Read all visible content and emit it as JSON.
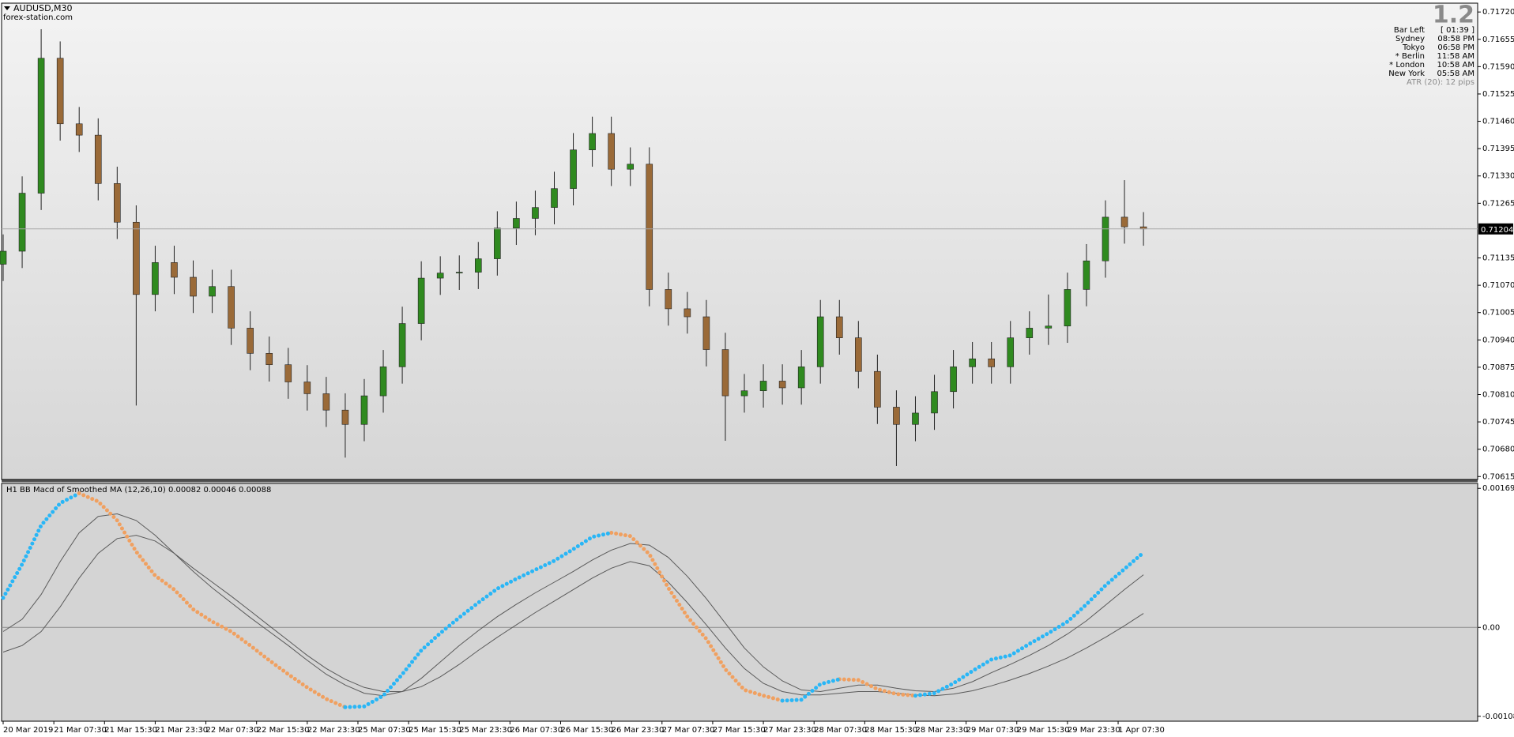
{
  "chart_data": [
    {
      "type": "candlestick",
      "title": "AUDUSD,M30",
      "subtitle": "forex-station.com",
      "x": [
        0,
        6,
        12,
        18,
        24,
        30,
        36,
        42,
        48,
        54,
        60,
        66,
        72,
        78,
        84,
        90,
        96,
        102,
        108,
        114,
        120,
        126,
        132,
        138,
        144,
        150,
        156,
        162,
        168,
        174,
        180,
        186,
        192,
        198,
        204,
        210,
        216,
        222,
        228,
        234,
        240,
        246,
        252,
        258,
        264,
        270,
        276,
        282,
        288,
        294,
        300,
        306,
        312,
        318,
        324,
        330,
        336,
        342,
        348,
        354,
        360
      ],
      "open": [
        0.7112,
        0.71151,
        0.71289,
        0.7161,
        0.71454,
        0.71427,
        0.71312,
        0.7122,
        0.71048,
        0.71124,
        0.71089,
        0.71044,
        0.71067,
        0.70968,
        0.70908,
        0.70881,
        0.7084,
        0.70812,
        0.70773,
        0.70739,
        0.70807,
        0.70876,
        0.70979,
        0.71087,
        0.71099,
        0.71101,
        0.71133,
        0.71206,
        0.71229,
        0.71255,
        0.713,
        0.71392,
        0.71431,
        0.71346,
        0.71358,
        0.7106,
        0.71014,
        0.70995,
        0.70917,
        0.70807,
        0.70819,
        0.70842,
        0.70826,
        0.70876,
        0.70995,
        0.70945,
        0.70865,
        0.7078,
        0.70739,
        0.70766,
        0.70817,
        0.70876,
        0.70895,
        0.70876,
        0.70945,
        0.70968,
        0.70973,
        0.7106,
        0.71128,
        0.71232,
        0.71209
      ],
      "high": [
        0.71191,
        0.71329,
        0.71679,
        0.7165,
        0.71494,
        0.71467,
        0.71352,
        0.7126,
        0.71164,
        0.71164,
        0.71129,
        0.71107,
        0.71107,
        0.71008,
        0.70948,
        0.70921,
        0.7088,
        0.70852,
        0.70813,
        0.70847,
        0.70916,
        0.71019,
        0.71127,
        0.71139,
        0.71141,
        0.71173,
        0.71246,
        0.71269,
        0.71295,
        0.7134,
        0.71432,
        0.71471,
        0.71471,
        0.71398,
        0.71398,
        0.711,
        0.71054,
        0.71035,
        0.70957,
        0.70859,
        0.70882,
        0.70882,
        0.70916,
        0.71035,
        0.71035,
        0.70985,
        0.70905,
        0.7082,
        0.70806,
        0.70857,
        0.70916,
        0.70935,
        0.70935,
        0.70985,
        0.71008,
        0.71048,
        0.711,
        0.71168,
        0.71272,
        0.7132,
        0.71244
      ],
      "low": [
        0.7108,
        0.71111,
        0.71249,
        0.71414,
        0.71387,
        0.71272,
        0.7118,
        0.70784,
        0.71008,
        0.71049,
        0.71004,
        0.71004,
        0.70928,
        0.70868,
        0.70841,
        0.708,
        0.70772,
        0.70733,
        0.7066,
        0.70699,
        0.70767,
        0.70836,
        0.70939,
        0.71047,
        0.71059,
        0.71061,
        0.71093,
        0.71166,
        0.71189,
        0.71215,
        0.7126,
        0.71352,
        0.71306,
        0.71306,
        0.7102,
        0.70974,
        0.70955,
        0.70877,
        0.707,
        0.70767,
        0.70779,
        0.70786,
        0.70786,
        0.70836,
        0.70905,
        0.70825,
        0.7074,
        0.7064,
        0.70699,
        0.70726,
        0.70777,
        0.70836,
        0.70836,
        0.70836,
        0.70905,
        0.70928,
        0.70933,
        0.7102,
        0.71088,
        0.71169,
        0.71164
      ],
      "close": [
        0.71151,
        0.71289,
        0.7161,
        0.71454,
        0.71427,
        0.71312,
        0.7122,
        0.71048,
        0.71124,
        0.71089,
        0.71044,
        0.71067,
        0.70968,
        0.70908,
        0.70881,
        0.7084,
        0.70812,
        0.70773,
        0.70739,
        0.70807,
        0.70876,
        0.70979,
        0.71087,
        0.71099,
        0.71101,
        0.71133,
        0.71206,
        0.71229,
        0.71255,
        0.713,
        0.71392,
        0.71431,
        0.71346,
        0.71358,
        0.7106,
        0.71014,
        0.70995,
        0.70917,
        0.70807,
        0.70819,
        0.70842,
        0.70826,
        0.70876,
        0.70995,
        0.70945,
        0.70865,
        0.7078,
        0.70739,
        0.70766,
        0.70817,
        0.70876,
        0.70895,
        0.70876,
        0.70945,
        0.70968,
        0.70973,
        0.7106,
        0.71128,
        0.71232,
        0.71209,
        0.71204
      ],
      "up_color": "#2f8a1f",
      "down_color": "#9a6a38",
      "xlim": [
        -0.5,
        465.5
      ],
      "ylim": [
        0.70608,
        0.71741
      ],
      "yticks": [
        {
          "value": 0.7172,
          "label": "0.71720"
        },
        0.71655,
        {
          "value": 0.7159,
          "label": "0.71590"
        },
        0.71525,
        {
          "value": 0.7146,
          "label": "0.71460"
        },
        0.71395,
        {
          "value": 0.7133,
          "label": "0.71330"
        },
        0.71265,
        0.71135,
        {
          "value": 0.7107,
          "label": "0.71070"
        },
        0.71005,
        {
          "value": 0.7094,
          "label": "0.70940"
        },
        0.70875,
        {
          "value": 0.7081,
          "label": "0.70810"
        },
        0.70745,
        {
          "value": 0.7068,
          "label": "0.70680"
        },
        0.70615
      ],
      "last_price": {
        "value": 0.71204,
        "label": "0.71204"
      }
    },
    {
      "type": "line",
      "title": "H1  BB Macd of Smoothed MA (12,26,10) 0.00082 0.00046 0.00088",
      "x": [
        0,
        6,
        12,
        18,
        24,
        30,
        36,
        42,
        48,
        54,
        60,
        66,
        72,
        78,
        84,
        90,
        96,
        102,
        108,
        114,
        120,
        126,
        132,
        138,
        144,
        150,
        156,
        162,
        168,
        174,
        180,
        186,
        192,
        198,
        204,
        210,
        216,
        222,
        228,
        234,
        240,
        246,
        252,
        258,
        264,
        270,
        276,
        282,
        288,
        294,
        300,
        306,
        312,
        318,
        324,
        330,
        336,
        342,
        348,
        354,
        360
      ],
      "series": [
        {
          "color": "#5a5a5a",
          "style": "line",
          "values": [
            -0.0003,
            -0.00022,
            -5e-05,
            0.00025,
            0.0006,
            0.0009,
            0.00108,
            0.00112,
            0.00105,
            0.0009,
            0.00072,
            0.00055,
            0.00038,
            0.0002,
            2e-05,
            -0.00016,
            -0.00034,
            -0.0005,
            -0.00063,
            -0.00073,
            -0.00078,
            -0.00078,
            -0.00072,
            -0.0006,
            -0.00045,
            -0.00028,
            -0.00012,
            3e-05,
            0.00018,
            0.00032,
            0.00046,
            0.0006,
            0.00072,
            0.0008,
            0.00075,
            0.00055,
            0.0003,
            3e-05,
            -0.00025,
            -0.0005,
            -0.00068,
            -0.00078,
            -0.00082,
            -0.00082,
            -0.0008,
            -0.00078,
            -0.00078,
            -0.0008,
            -0.00082,
            -0.00083,
            -0.00081,
            -0.00077,
            -0.00071,
            -0.00064,
            -0.00056,
            -0.00047,
            -0.00037,
            -0.00025,
            -0.00012,
            2e-05,
            0.00017
          ]
        },
        {
          "color": "#5a5a5a",
          "style": "line",
          "values": [
            -5e-05,
            0.0001,
            0.0004,
            0.0008,
            0.00115,
            0.00135,
            0.00138,
            0.0013,
            0.00112,
            0.0009,
            0.00068,
            0.00048,
            0.0003,
            0.00012,
            -5e-05,
            -0.00022,
            -0.0004,
            -0.00057,
            -0.0007,
            -0.0008,
            -0.00083,
            -0.00078,
            -0.00062,
            -0.00042,
            -0.00022,
            -4e-05,
            0.00013,
            0.00028,
            0.00042,
            0.00055,
            0.00068,
            0.00082,
            0.00094,
            0.00102,
            0.001,
            0.00085,
            0.00062,
            0.00035,
            5e-05,
            -0.00025,
            -0.00048,
            -0.00065,
            -0.00076,
            -0.00078,
            -0.00074,
            -0.0007,
            -0.0007,
            -0.00074,
            -0.00077,
            -0.00078,
            -0.00074,
            -0.00066,
            -0.00055,
            -0.00045,
            -0.00034,
            -0.00022,
            -8e-05,
            8e-05,
            0.00027,
            0.00046,
            0.00064
          ]
        },
        {
          "color": "#f0a060",
          "style": "dots",
          "values": [
            null,
            null,
            null,
            null,
            0.00163,
            0.00153,
            0.0013,
            0.00092,
            0.00063,
            0.00046,
            0.00022,
            7e-05,
            -5e-05,
            -0.00022,
            -0.0004,
            -0.00057,
            -0.00073,
            -0.00087,
            -0.00097,
            null,
            null,
            null,
            null,
            null,
            null,
            null,
            null,
            null,
            null,
            null,
            null,
            null,
            0.00115,
            0.00111,
            0.00089,
            0.00048,
            0.00013,
            -0.00014,
            -0.00051,
            -0.00076,
            -0.00083,
            -0.00089,
            null,
            null,
            -0.00063,
            -0.00064,
            -0.00075,
            -0.00081,
            -0.00083,
            null,
            null,
            null,
            null,
            null,
            null,
            null,
            null,
            null,
            null,
            null,
            null
          ]
        },
        {
          "color": "#29b6f6",
          "style": "dots",
          "values": [
            0.00036,
            0.00077,
            0.00124,
            0.00151,
            0.00163,
            null,
            null,
            null,
            null,
            null,
            null,
            null,
            null,
            null,
            null,
            null,
            null,
            null,
            -0.00097,
            -0.00096,
            -0.00083,
            -0.00057,
            -0.00028,
            -7e-05,
            0.00012,
            0.0003,
            0.00047,
            0.00059,
            0.0007,
            0.00081,
            0.00095,
            0.0011,
            0.00115,
            null,
            null,
            null,
            null,
            null,
            null,
            null,
            null,
            -0.00089,
            -0.00088,
            -0.00069,
            -0.00063,
            null,
            null,
            null,
            -0.00083,
            -0.0008,
            -0.00068,
            -0.00053,
            -0.00039,
            -0.00034,
            -0.0002,
            -7e-05,
            7e-05,
            0.00028,
            0.00051,
            0.00071,
            0.00091
          ]
        }
      ],
      "xlim": [
        -0.5,
        465.5
      ],
      "ylim": [
        -0.00114,
        0.00175
      ],
      "yticks": [
        0.00169,
        {
          "value": 0,
          "label": "0.00"
        },
        -0.00108
      ],
      "zero_line": true,
      "xticks": [
        {
          "value": 0,
          "label": "20 Mar 2019"
        },
        {
          "value": 16,
          "label": "21 Mar 07:30"
        },
        {
          "value": 32,
          "label": "21 Mar 15:30"
        },
        {
          "value": 48,
          "label": "21 Mar 23:30"
        },
        {
          "value": 64,
          "label": "22 Mar 07:30"
        },
        {
          "value": 80,
          "label": "22 Mar 15:30"
        },
        {
          "value": 96,
          "label": "22 Mar 23:30"
        },
        {
          "value": 112,
          "label": "25 Mar 07:30"
        },
        {
          "value": 128,
          "label": "25 Mar 15:30"
        },
        {
          "value": 144,
          "label": "25 Mar 23:30"
        },
        {
          "value": 160,
          "label": "26 Mar 07:30"
        },
        {
          "value": 176,
          "label": "26 Mar 15:30"
        },
        {
          "value": 192,
          "label": "26 Mar 23:30"
        },
        {
          "value": 208,
          "label": "27 Mar 07:30"
        },
        {
          "value": 224,
          "label": "27 Mar 15:30"
        },
        {
          "value": 240,
          "label": "27 Mar 23:30"
        },
        {
          "value": 256,
          "label": "28 Mar 07:30"
        },
        {
          "value": 272,
          "label": "28 Mar 15:30"
        },
        {
          "value": 288,
          "label": "28 Mar 23:30"
        },
        {
          "value": 304,
          "label": "29 Mar 07:30"
        },
        {
          "value": 320,
          "label": "29 Mar 15:30"
        },
        {
          "value": 336,
          "label": "29 Mar 23:30"
        },
        {
          "value": 352,
          "label": "1 Apr 07:30"
        }
      ]
    }
  ],
  "info_panel": {
    "spread": "1.2",
    "rows": [
      {
        "label": "Bar Left",
        "value": "[ 01:39 ]",
        "color": "#8a8a8a"
      },
      {
        "label": "Sydney",
        "value": "08:58 PM",
        "color": "#8a8a8a"
      },
      {
        "label": "Tokyo",
        "value": "06:58 PM",
        "color": "#8a8a8a"
      },
      {
        "label": "* Berlin",
        "value": "11:58 AM",
        "color": "#e00000"
      },
      {
        "label": "* London",
        "value": "10:58 AM",
        "color": "#e00000"
      },
      {
        "label": "New York",
        "value": "05:58 AM",
        "color": "#8a8a8a"
      }
    ],
    "atr": "ATR (20): 12 pips"
  }
}
